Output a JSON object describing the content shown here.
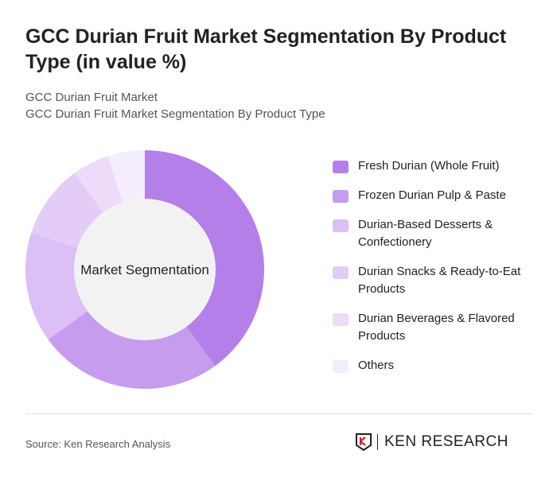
{
  "header": {
    "title": "GCC Durian Fruit Market Segmentation By Product Type (in value %)",
    "subtitle1": "GCC Durian Fruit Market",
    "subtitle2": "GCC Durian Fruit Market Segmentation By Product Type"
  },
  "chart_data": {
    "type": "pie",
    "variant": "donut",
    "center_label": "Market Segmentation",
    "legend_placement": "right",
    "categories": [
      "Fresh Durian (Whole Fruit)",
      "Frozen Durian Pulp & Paste",
      "Durian-Based Desserts & Confectionery",
      "Durian Snacks & Ready-to-Eat Products",
      "Durian Beverages & Flavored Products",
      "Others"
    ],
    "values": [
      40,
      25,
      15,
      10,
      5,
      5
    ],
    "colors": [
      "#b57fea",
      "#c59cee",
      "#dbbff5",
      "#e3cdf7",
      "#ecdcfa",
      "#f4eefc"
    ]
  },
  "footer": {
    "source": "Source: Ken Research Analysis",
    "logo": "KEN RESEARCH"
  }
}
